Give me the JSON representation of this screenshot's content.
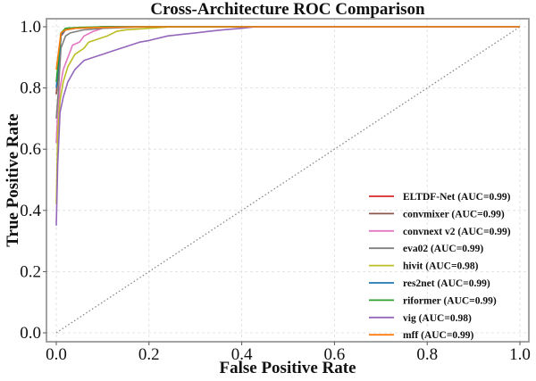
{
  "chart_data": {
    "type": "line",
    "title": "Cross-Architecture ROC Comparison",
    "xlabel": "False Positive Rate",
    "ylabel": "True Positive Rate",
    "xlim": [
      0.0,
      1.0
    ],
    "ylim": [
      0.0,
      1.0
    ],
    "xticks": [
      "0.0",
      "0.2",
      "0.4",
      "0.6",
      "0.8",
      "1.0"
    ],
    "yticks": [
      "0.0",
      "0.2",
      "0.4",
      "0.6",
      "0.8",
      "1.0"
    ],
    "grid": true,
    "legend_position": "bottom-right",
    "reference_line": {
      "name": "chance",
      "style": "dotted",
      "color": "#888888",
      "points": [
        [
          0,
          0
        ],
        [
          1,
          1
        ]
      ]
    },
    "series": [
      {
        "name": "ELTDF-Net",
        "legend": "ELTDF-Net (AUC=0.99)",
        "auc": 0.99,
        "color": "#d62728",
        "points": [
          [
            0,
            0.78
          ],
          [
            0.005,
            0.86
          ],
          [
            0.01,
            0.97
          ],
          [
            0.02,
            0.99
          ],
          [
            0.04,
            0.995
          ],
          [
            0.1,
            1.0
          ],
          [
            1.0,
            1.0
          ]
        ]
      },
      {
        "name": "convmixer",
        "legend": "convmixer (AUC=0.99)",
        "auc": 0.99,
        "color": "#8c564b",
        "points": [
          [
            0,
            0.78
          ],
          [
            0.005,
            0.85
          ],
          [
            0.01,
            0.97
          ],
          [
            0.02,
            0.99
          ],
          [
            0.05,
            0.997
          ],
          [
            0.12,
            1.0
          ],
          [
            1.0,
            1.0
          ]
        ]
      },
      {
        "name": "convnext v2",
        "legend": "convnext v2 (AUC=0.99)",
        "auc": 0.99,
        "color": "#e377c2",
        "points": [
          [
            0,
            0.62
          ],
          [
            0.003,
            0.72
          ],
          [
            0.008,
            0.8
          ],
          [
            0.015,
            0.86
          ],
          [
            0.025,
            0.9
          ],
          [
            0.035,
            0.94
          ],
          [
            0.05,
            0.95
          ],
          [
            0.06,
            0.97
          ],
          [
            0.08,
            0.985
          ],
          [
            0.1,
            0.995
          ],
          [
            0.12,
            1.0
          ],
          [
            1.0,
            1.0
          ]
        ]
      },
      {
        "name": "eva02",
        "legend": "eva02 (AUC=0.99)",
        "auc": 0.99,
        "color": "#7f7f7f",
        "points": [
          [
            0,
            0.7
          ],
          [
            0.005,
            0.8
          ],
          [
            0.01,
            0.93
          ],
          [
            0.02,
            0.97
          ],
          [
            0.03,
            0.98
          ],
          [
            0.06,
            0.99
          ],
          [
            0.1,
            0.995
          ],
          [
            0.2,
            1.0
          ],
          [
            1.0,
            1.0
          ]
        ]
      },
      {
        "name": "hivit",
        "legend": "hivit (AUC=0.98)",
        "auc": 0.98,
        "color": "#bcbd22",
        "points": [
          [
            0,
            0.42
          ],
          [
            0.003,
            0.65
          ],
          [
            0.008,
            0.76
          ],
          [
            0.015,
            0.82
          ],
          [
            0.025,
            0.87
          ],
          [
            0.04,
            0.91
          ],
          [
            0.06,
            0.93
          ],
          [
            0.07,
            0.95
          ],
          [
            0.09,
            0.96
          ],
          [
            0.11,
            0.97
          ],
          [
            0.13,
            0.985
          ],
          [
            0.15,
            0.99
          ],
          [
            0.2,
            0.995
          ],
          [
            0.25,
            1.0
          ],
          [
            1.0,
            1.0
          ]
        ]
      },
      {
        "name": "res2net",
        "legend": "res2net (AUC=0.99)",
        "auc": 0.99,
        "color": "#1f77b4",
        "points": [
          [
            0,
            0.8
          ],
          [
            0.005,
            0.88
          ],
          [
            0.01,
            0.975
          ],
          [
            0.02,
            0.99
          ],
          [
            0.04,
            0.995
          ],
          [
            0.1,
            1.0
          ],
          [
            1.0,
            1.0
          ]
        ]
      },
      {
        "name": "riformer",
        "legend": "riformer (AUC=0.99)",
        "auc": 0.99,
        "color": "#2ca02c",
        "points": [
          [
            0,
            0.82
          ],
          [
            0.005,
            0.9
          ],
          [
            0.01,
            0.98
          ],
          [
            0.02,
            0.995
          ],
          [
            0.05,
            0.998
          ],
          [
            0.1,
            1.0
          ],
          [
            1.0,
            1.0
          ]
        ]
      },
      {
        "name": "vig",
        "legend": "vig (AUC=0.98)",
        "auc": 0.98,
        "color": "#9467bd",
        "points": [
          [
            0,
            0.35
          ],
          [
            0.003,
            0.55
          ],
          [
            0.008,
            0.72
          ],
          [
            0.015,
            0.77
          ],
          [
            0.025,
            0.82
          ],
          [
            0.04,
            0.86
          ],
          [
            0.06,
            0.89
          ],
          [
            0.08,
            0.9
          ],
          [
            0.1,
            0.91
          ],
          [
            0.12,
            0.92
          ],
          [
            0.14,
            0.93
          ],
          [
            0.16,
            0.94
          ],
          [
            0.18,
            0.95
          ],
          [
            0.2,
            0.955
          ],
          [
            0.24,
            0.97
          ],
          [
            0.27,
            0.975
          ],
          [
            0.3,
            0.98
          ],
          [
            0.33,
            0.985
          ],
          [
            0.36,
            0.99
          ],
          [
            0.4,
            0.995
          ],
          [
            0.43,
            1.0
          ],
          [
            1.0,
            1.0
          ]
        ]
      },
      {
        "name": "mff",
        "legend": "mff (AUC=0.99)",
        "auc": 0.99,
        "color": "#ff7f0e",
        "points": [
          [
            0,
            0.86
          ],
          [
            0.005,
            0.92
          ],
          [
            0.01,
            0.98
          ],
          [
            0.02,
            0.99
          ],
          [
            0.04,
            0.995
          ],
          [
            0.1,
            0.998
          ],
          [
            0.2,
            1.0
          ],
          [
            1.0,
            1.0
          ]
        ]
      }
    ]
  }
}
